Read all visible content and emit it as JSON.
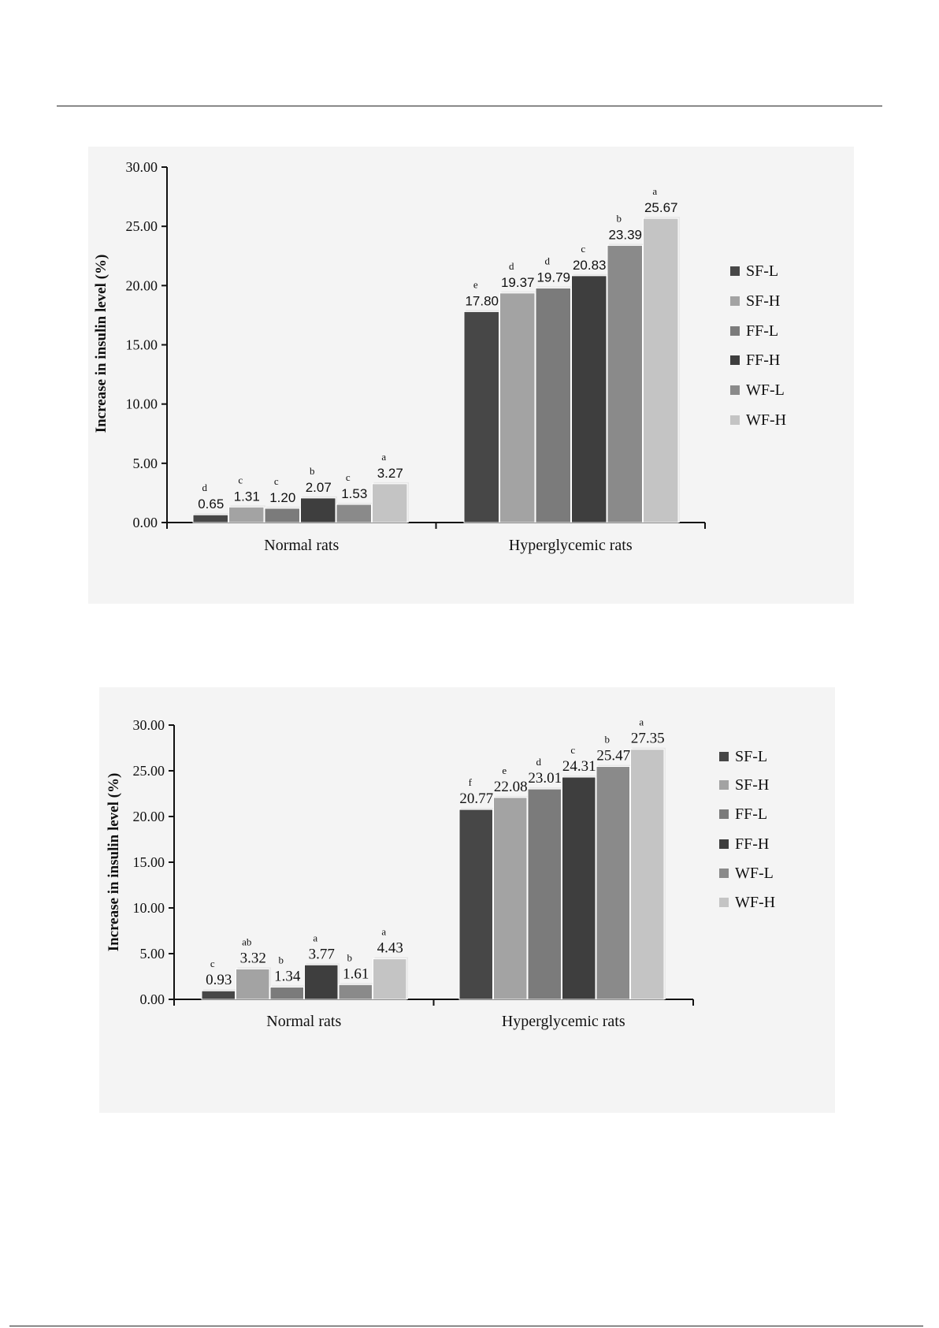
{
  "chart_data": [
    {
      "type": "bar",
      "ylabel": "Increase in insulin level (%)",
      "xlabel": "",
      "ylim": [
        0,
        30
      ],
      "yticks": [
        "0.00",
        "5.00",
        "10.00",
        "15.00",
        "20.00",
        "25.00",
        "30.00"
      ],
      "categories": [
        "Normal rats",
        "Hyperglycemic rats"
      ],
      "legend_position": "right",
      "series": [
        {
          "name": "SF-L",
          "color": "#474747",
          "values": [
            0.65,
            17.8
          ],
          "labels": [
            "0.65",
            "17.80"
          ],
          "letters": [
            "d",
            "e"
          ]
        },
        {
          "name": "SF-H",
          "color": "#a3a3a3",
          "values": [
            1.31,
            19.37
          ],
          "labels": [
            "1.31",
            "19.37"
          ],
          "letters": [
            "c",
            "d"
          ]
        },
        {
          "name": "FF-L",
          "color": "#7b7b7b",
          "values": [
            1.2,
            19.79
          ],
          "labels": [
            "1.20",
            "19.79"
          ],
          "letters": [
            "c",
            "d"
          ]
        },
        {
          "name": "FF-H",
          "color": "#3e3e3e",
          "values": [
            2.07,
            20.83
          ],
          "labels": [
            "2.07",
            "20.83"
          ],
          "letters": [
            "b",
            "c"
          ]
        },
        {
          "name": "WF-L",
          "color": "#8a8a8a",
          "values": [
            1.53,
            23.39
          ],
          "labels": [
            "1.53",
            "23.39"
          ],
          "letters": [
            "c",
            "b"
          ]
        },
        {
          "name": "WF-H",
          "color": "#c4c4c4",
          "values": [
            3.27,
            25.67
          ],
          "labels": [
            "3.27",
            "25.67"
          ],
          "letters": [
            "a",
            "a"
          ]
        }
      ]
    },
    {
      "type": "bar",
      "ylabel": "Increase in insulin level (%)",
      "xlabel": "",
      "ylim": [
        0,
        30
      ],
      "yticks": [
        "0.00",
        "5.00",
        "10.00",
        "15.00",
        "20.00",
        "25.00",
        "30.00"
      ],
      "categories": [
        "Normal rats",
        "Hyperglycemic rats"
      ],
      "legend_position": "right",
      "series": [
        {
          "name": "SF-L",
          "color": "#474747",
          "values": [
            0.93,
            20.77
          ],
          "labels": [
            "0.93",
            "20.77"
          ],
          "letters": [
            "c",
            "f"
          ]
        },
        {
          "name": "SF-H",
          "color": "#a3a3a3",
          "values": [
            3.32,
            22.08
          ],
          "labels": [
            "3.32",
            "22.08"
          ],
          "letters": [
            "ab",
            "e"
          ]
        },
        {
          "name": "FF-L",
          "color": "#7b7b7b",
          "values": [
            1.34,
            23.01
          ],
          "labels": [
            "1.34",
            "23.01"
          ],
          "letters": [
            "b",
            "d"
          ]
        },
        {
          "name": "FF-H",
          "color": "#3e3e3e",
          "values": [
            3.77,
            24.31
          ],
          "labels": [
            "3.77",
            "24.31"
          ],
          "letters": [
            "a",
            "c"
          ]
        },
        {
          "name": "WF-L",
          "color": "#8a8a8a",
          "values": [
            1.61,
            25.47
          ],
          "labels": [
            "1.61",
            "25.47"
          ],
          "letters": [
            "b",
            "b"
          ]
        },
        {
          "name": "WF-H",
          "color": "#c4c4c4",
          "values": [
            4.43,
            27.35
          ],
          "labels": [
            "4.43",
            "27.35"
          ],
          "letters": [
            "a",
            "a"
          ]
        }
      ]
    }
  ]
}
